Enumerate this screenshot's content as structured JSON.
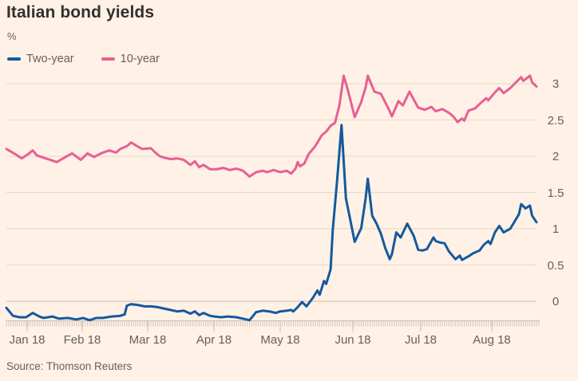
{
  "source": "Source: Thomson Reuters",
  "colors": {
    "background": "#FFF1E5",
    "title_text": "#33302E",
    "muted_text": "#66605C",
    "grid": "#E7D9C8",
    "zero_line": "#CABDAF",
    "axis_line": "#C8BCAE",
    "tick": "#D5C9BB",
    "two_year": "#15599E",
    "ten_year": "#E75F94"
  },
  "legend": [
    {
      "label": "Two-year",
      "color": "#15599E"
    },
    {
      "label": "10-year",
      "color": "#E75F94"
    }
  ],
  "chart_data": {
    "type": "line",
    "title": "Italian bond yields",
    "ylabel": "%",
    "xlabel": "",
    "x_unit": "days since 1 Jan 2018",
    "x_tick_labels": [
      "Jan 18",
      "Feb 18",
      "Mar 18",
      "Apr 18",
      "May 18",
      "Jun 18",
      "Jul 18",
      "Aug 18"
    ],
    "y_ticks": [
      0,
      0.5,
      1,
      1.5,
      2,
      2.5,
      3
    ],
    "ylim": [
      -0.45,
      3.3
    ],
    "xlim": [
      0,
      242
    ],
    "grid": "horizontal",
    "legend_position": "top-left",
    "series": [
      {
        "name": "Two-year",
        "color": "#15599E",
        "points": [
          [
            0,
            -0.09
          ],
          [
            3,
            -0.2
          ],
          [
            6,
            -0.22
          ],
          [
            9,
            -0.22
          ],
          [
            12,
            -0.16
          ],
          [
            15,
            -0.21
          ],
          [
            17,
            -0.23
          ],
          [
            21,
            -0.21
          ],
          [
            24,
            -0.24
          ],
          [
            28,
            -0.23
          ],
          [
            32,
            -0.25
          ],
          [
            35,
            -0.23
          ],
          [
            38,
            -0.26
          ],
          [
            41,
            -0.23
          ],
          [
            44,
            -0.23
          ],
          [
            48,
            -0.21
          ],
          [
            52,
            -0.2
          ],
          [
            54,
            -0.18
          ],
          [
            55,
            -0.06
          ],
          [
            57,
            -0.04
          ],
          [
            60,
            -0.05
          ],
          [
            63,
            -0.07
          ],
          [
            66,
            -0.07
          ],
          [
            69,
            -0.08
          ],
          [
            72,
            -0.1
          ],
          [
            75,
            -0.12
          ],
          [
            78,
            -0.14
          ],
          [
            81,
            -0.13
          ],
          [
            84,
            -0.17
          ],
          [
            86,
            -0.14
          ],
          [
            88,
            -0.19
          ],
          [
            90,
            -0.16
          ],
          [
            93,
            -0.2
          ],
          [
            95,
            -0.21
          ],
          [
            98,
            -0.22
          ],
          [
            101,
            -0.21
          ],
          [
            105,
            -0.22
          ],
          [
            108,
            -0.24
          ],
          [
            111,
            -0.26
          ],
          [
            114,
            -0.15
          ],
          [
            117,
            -0.13
          ],
          [
            120,
            -0.14
          ],
          [
            123,
            -0.16
          ],
          [
            125,
            -0.14
          ],
          [
            128,
            -0.13
          ],
          [
            130,
            -0.12
          ],
          [
            131,
            -0.14
          ],
          [
            133,
            -0.08
          ],
          [
            135,
            -0.01
          ],
          [
            137,
            -0.07
          ],
          [
            140,
            0.05
          ],
          [
            142,
            0.15
          ],
          [
            143,
            0.09
          ],
          [
            145,
            0.28
          ],
          [
            146,
            0.24
          ],
          [
            148,
            0.44
          ],
          [
            149,
            0.98
          ],
          [
            151,
            1.67
          ],
          [
            153,
            2.43
          ],
          [
            155,
            1.42
          ],
          [
            157,
            1.12
          ],
          [
            159,
            0.82
          ],
          [
            162,
            1.01
          ],
          [
            164,
            1.42
          ],
          [
            165,
            1.69
          ],
          [
            167,
            1.18
          ],
          [
            169,
            1.07
          ],
          [
            171,
            0.93
          ],
          [
            173,
            0.73
          ],
          [
            175,
            0.58
          ],
          [
            176,
            0.65
          ],
          [
            178,
            0.95
          ],
          [
            180,
            0.88
          ],
          [
            183,
            1.07
          ],
          [
            186,
            0.9
          ],
          [
            188,
            0.71
          ],
          [
            190,
            0.7
          ],
          [
            192,
            0.72
          ],
          [
            195,
            0.88
          ],
          [
            196,
            0.83
          ],
          [
            198,
            0.81
          ],
          [
            200,
            0.8
          ],
          [
            202,
            0.69
          ],
          [
            205,
            0.58
          ],
          [
            207,
            0.63
          ],
          [
            208,
            0.57
          ],
          [
            211,
            0.62
          ],
          [
            213,
            0.66
          ],
          [
            216,
            0.7
          ],
          [
            218,
            0.78
          ],
          [
            220,
            0.83
          ],
          [
            221,
            0.79
          ],
          [
            223,
            0.95
          ],
          [
            225,
            1.04
          ],
          [
            227,
            0.95
          ],
          [
            230,
            1.0
          ],
          [
            232,
            1.1
          ],
          [
            234,
            1.2
          ],
          [
            235,
            1.34
          ],
          [
            237,
            1.28
          ],
          [
            239,
            1.32
          ],
          [
            240,
            1.18
          ],
          [
            242,
            1.09
          ]
        ]
      },
      {
        "name": "10-year",
        "color": "#E75F94",
        "points": [
          [
            0,
            2.1
          ],
          [
            4,
            2.03
          ],
          [
            7,
            1.97
          ],
          [
            10,
            2.03
          ],
          [
            12,
            2.08
          ],
          [
            14,
            2.01
          ],
          [
            16,
            1.99
          ],
          [
            20,
            1.95
          ],
          [
            23,
            1.92
          ],
          [
            27,
            1.99
          ],
          [
            30,
            2.04
          ],
          [
            34,
            1.95
          ],
          [
            37,
            2.04
          ],
          [
            40,
            1.99
          ],
          [
            44,
            2.05
          ],
          [
            47,
            2.08
          ],
          [
            50,
            2.05
          ],
          [
            52,
            2.1
          ],
          [
            55,
            2.14
          ],
          [
            57,
            2.19
          ],
          [
            59,
            2.15
          ],
          [
            62,
            2.1
          ],
          [
            66,
            2.11
          ],
          [
            68,
            2.05
          ],
          [
            70,
            2.0
          ],
          [
            72,
            1.98
          ],
          [
            75,
            1.96
          ],
          [
            78,
            1.97
          ],
          [
            81,
            1.95
          ],
          [
            84,
            1.88
          ],
          [
            86,
            1.93
          ],
          [
            88,
            1.85
          ],
          [
            90,
            1.88
          ],
          [
            93,
            1.82
          ],
          [
            96,
            1.82
          ],
          [
            99,
            1.84
          ],
          [
            102,
            1.81
          ],
          [
            105,
            1.83
          ],
          [
            108,
            1.8
          ],
          [
            111,
            1.72
          ],
          [
            114,
            1.78
          ],
          [
            117,
            1.8
          ],
          [
            119,
            1.78
          ],
          [
            122,
            1.81
          ],
          [
            125,
            1.78
          ],
          [
            128,
            1.8
          ],
          [
            130,
            1.76
          ],
          [
            132,
            1.83
          ],
          [
            133,
            1.92
          ],
          [
            134,
            1.86
          ],
          [
            136,
            1.9
          ],
          [
            138,
            2.03
          ],
          [
            141,
            2.14
          ],
          [
            144,
            2.29
          ],
          [
            146,
            2.34
          ],
          [
            148,
            2.42
          ],
          [
            150,
            2.46
          ],
          [
            152,
            2.7
          ],
          [
            154,
            3.11
          ],
          [
            156,
            2.9
          ],
          [
            159,
            2.54
          ],
          [
            162,
            2.75
          ],
          [
            164,
            2.95
          ],
          [
            165,
            3.11
          ],
          [
            168,
            2.89
          ],
          [
            171,
            2.86
          ],
          [
            175,
            2.62
          ],
          [
            176,
            2.55
          ],
          [
            179,
            2.76
          ],
          [
            181,
            2.7
          ],
          [
            184,
            2.89
          ],
          [
            188,
            2.67
          ],
          [
            191,
            2.64
          ],
          [
            194,
            2.68
          ],
          [
            196,
            2.62
          ],
          [
            199,
            2.65
          ],
          [
            202,
            2.6
          ],
          [
            204,
            2.55
          ],
          [
            206,
            2.47
          ],
          [
            208,
            2.52
          ],
          [
            209,
            2.49
          ],
          [
            211,
            2.63
          ],
          [
            214,
            2.66
          ],
          [
            216,
            2.72
          ],
          [
            219,
            2.8
          ],
          [
            220,
            2.77
          ],
          [
            223,
            2.88
          ],
          [
            225,
            2.94
          ],
          [
            227,
            2.87
          ],
          [
            230,
            2.94
          ],
          [
            233,
            3.03
          ],
          [
            235,
            3.09
          ],
          [
            236,
            3.04
          ],
          [
            239,
            3.11
          ],
          [
            240,
            3.02
          ],
          [
            242,
            2.96
          ]
        ]
      }
    ]
  }
}
